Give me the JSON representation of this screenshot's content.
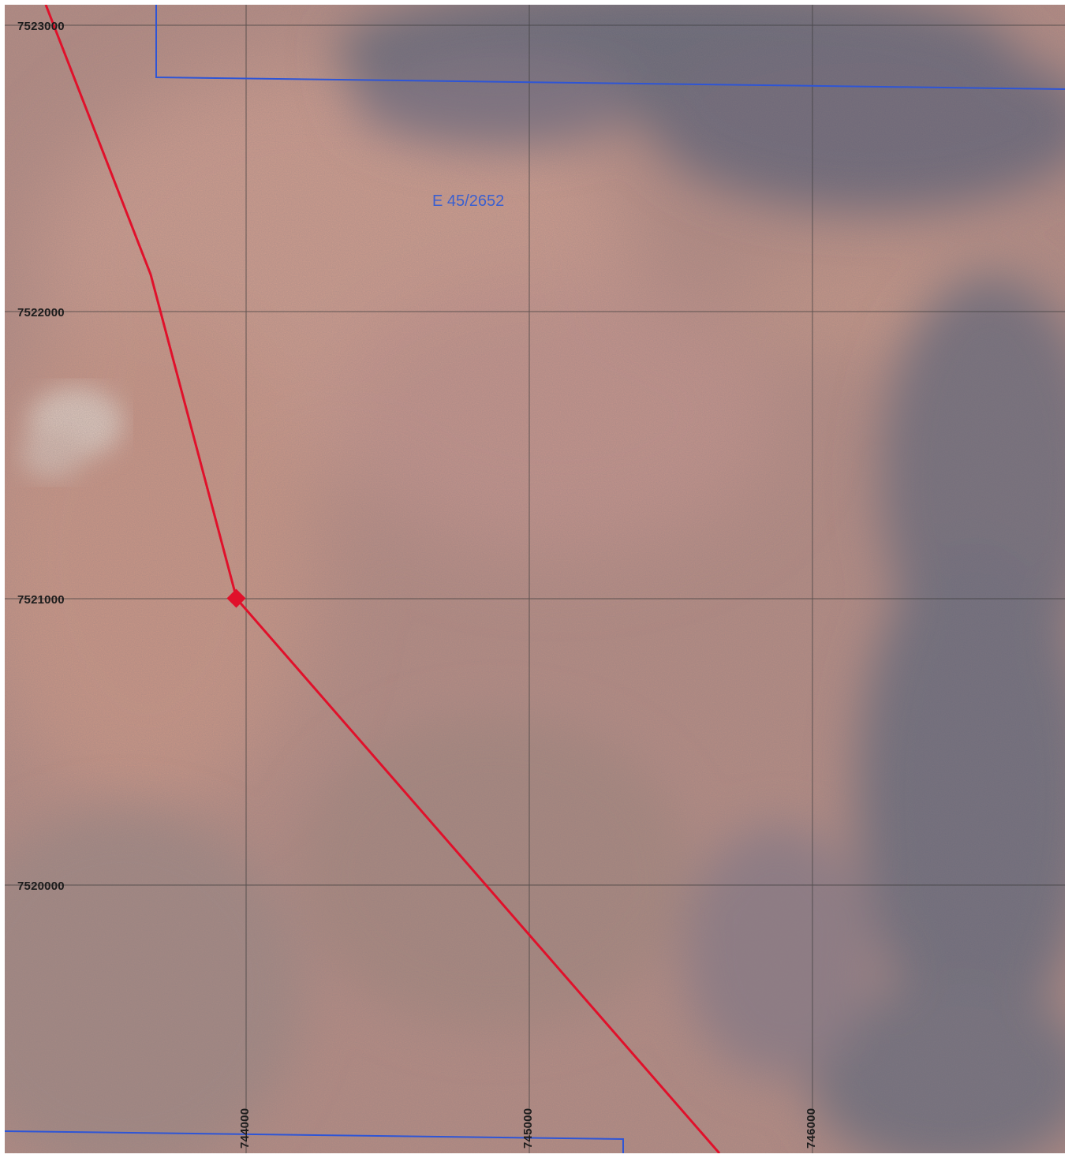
{
  "map": {
    "northing_labels": [
      "7523000",
      "7522000",
      "7521000",
      "7520000"
    ],
    "easting_labels": [
      "744000",
      "745000",
      "746000"
    ],
    "tenement_label": "E 45/2652",
    "colors": {
      "boundary": "#2e55d6",
      "route": "#e0112b",
      "grid": "#3a3a3a",
      "terrain_light": "#c99a8c",
      "terrain_dark": "#6f6c78"
    },
    "icons": {
      "route_vertex": "red-diamond-marker"
    }
  }
}
